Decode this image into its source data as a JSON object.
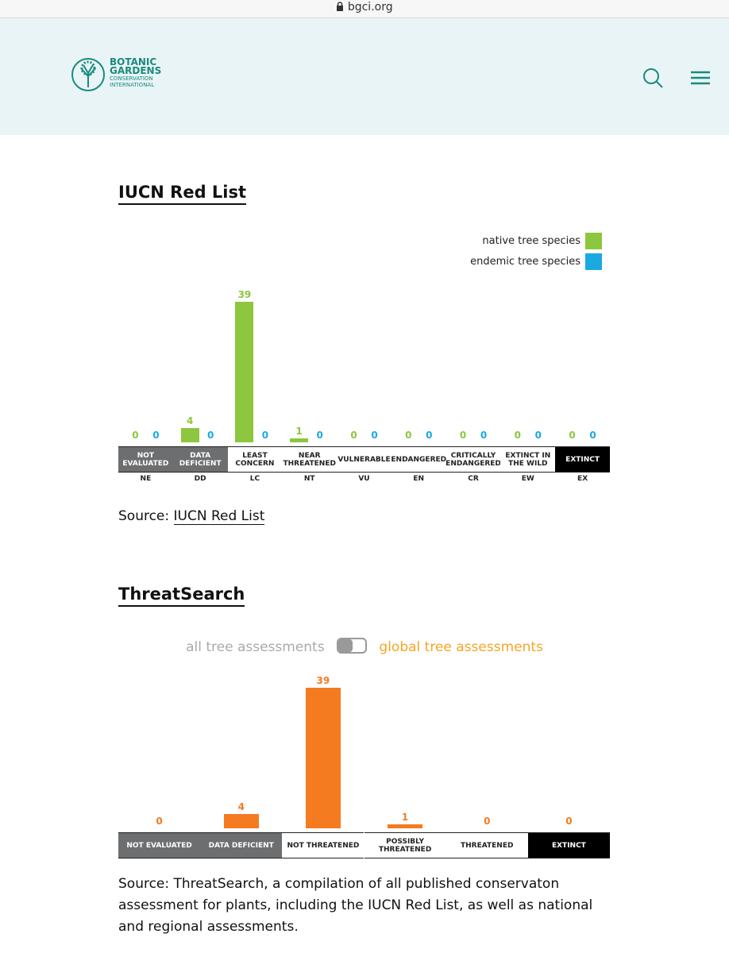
{
  "browser": {
    "url": "bgci.org"
  },
  "header": {
    "logo_lines": [
      "BOTANIC",
      "GARDENS",
      "CONSERVATION",
      "INTERNATIONAL"
    ]
  },
  "sections": [
    {
      "title": "IUCN Red List",
      "source_prefix": "Source:",
      "source_link": "IUCN Red List"
    },
    {
      "title": "ThreatSearch",
      "toggle": {
        "off_label": "all tree assessments",
        "on_label": "global tree assessments"
      },
      "source": "Source: ThreatSearch, a compilation of all published conservaton assessment for plants, including the IUCN Red List, as well as national and regional assessments."
    }
  ],
  "chart_data": [
    {
      "type": "bar",
      "categories": [
        "NOT EVALUATED",
        "DATA DEFICIENT",
        "LEAST CONCERN",
        "NEAR THREATENED",
        "VULNERABLE",
        "ENDANGERED",
        "CRITICALLY ENDANGERED",
        "EXTINCT IN THE WILD",
        "EXTINCT"
      ],
      "category_codes": [
        "NE",
        "DD",
        "LC",
        "NT",
        "VU",
        "EN",
        "CR",
        "EW",
        "EX"
      ],
      "category_colors": [
        "#6d6e70",
        "#6d6e70",
        "#ffffff",
        "#ffffff",
        "#ffffff",
        "#ffffff",
        "#ffffff",
        "#ffffff",
        "#000000"
      ],
      "category_text_colors": [
        "#ffffff",
        "#ffffff",
        "#222222",
        "#222222",
        "#222222",
        "#222222",
        "#222222",
        "#222222",
        "#ffffff"
      ],
      "series": [
        {
          "name": "native tree species",
          "color": "#8dc63f",
          "values": [
            0,
            4,
            39,
            1,
            0,
            0,
            0,
            0,
            0
          ]
        },
        {
          "name": "endemic tree species",
          "color": "#1ba9e1",
          "values": [
            0,
            0,
            0,
            0,
            0,
            0,
            0,
            0,
            0
          ]
        }
      ],
      "legend": "top-right"
    },
    {
      "type": "bar",
      "categories": [
        "NOT EVALUATED",
        "DATA DEFICIENT",
        "NOT THREATENED",
        "POSSIBLY THREATENED",
        "THREATENED",
        "EXTINCT"
      ],
      "category_colors": [
        "#6d6e70",
        "#6d6e70",
        "#ffffff",
        "#ffffff",
        "#ffffff",
        "#000000"
      ],
      "category_text_colors": [
        "#ffffff",
        "#ffffff",
        "#222222",
        "#222222",
        "#222222",
        "#ffffff"
      ],
      "series": [
        {
          "name": "global tree assessments",
          "color": "#f47b20",
          "values": [
            0,
            4,
            39,
            1,
            0,
            0
          ]
        }
      ]
    }
  ]
}
